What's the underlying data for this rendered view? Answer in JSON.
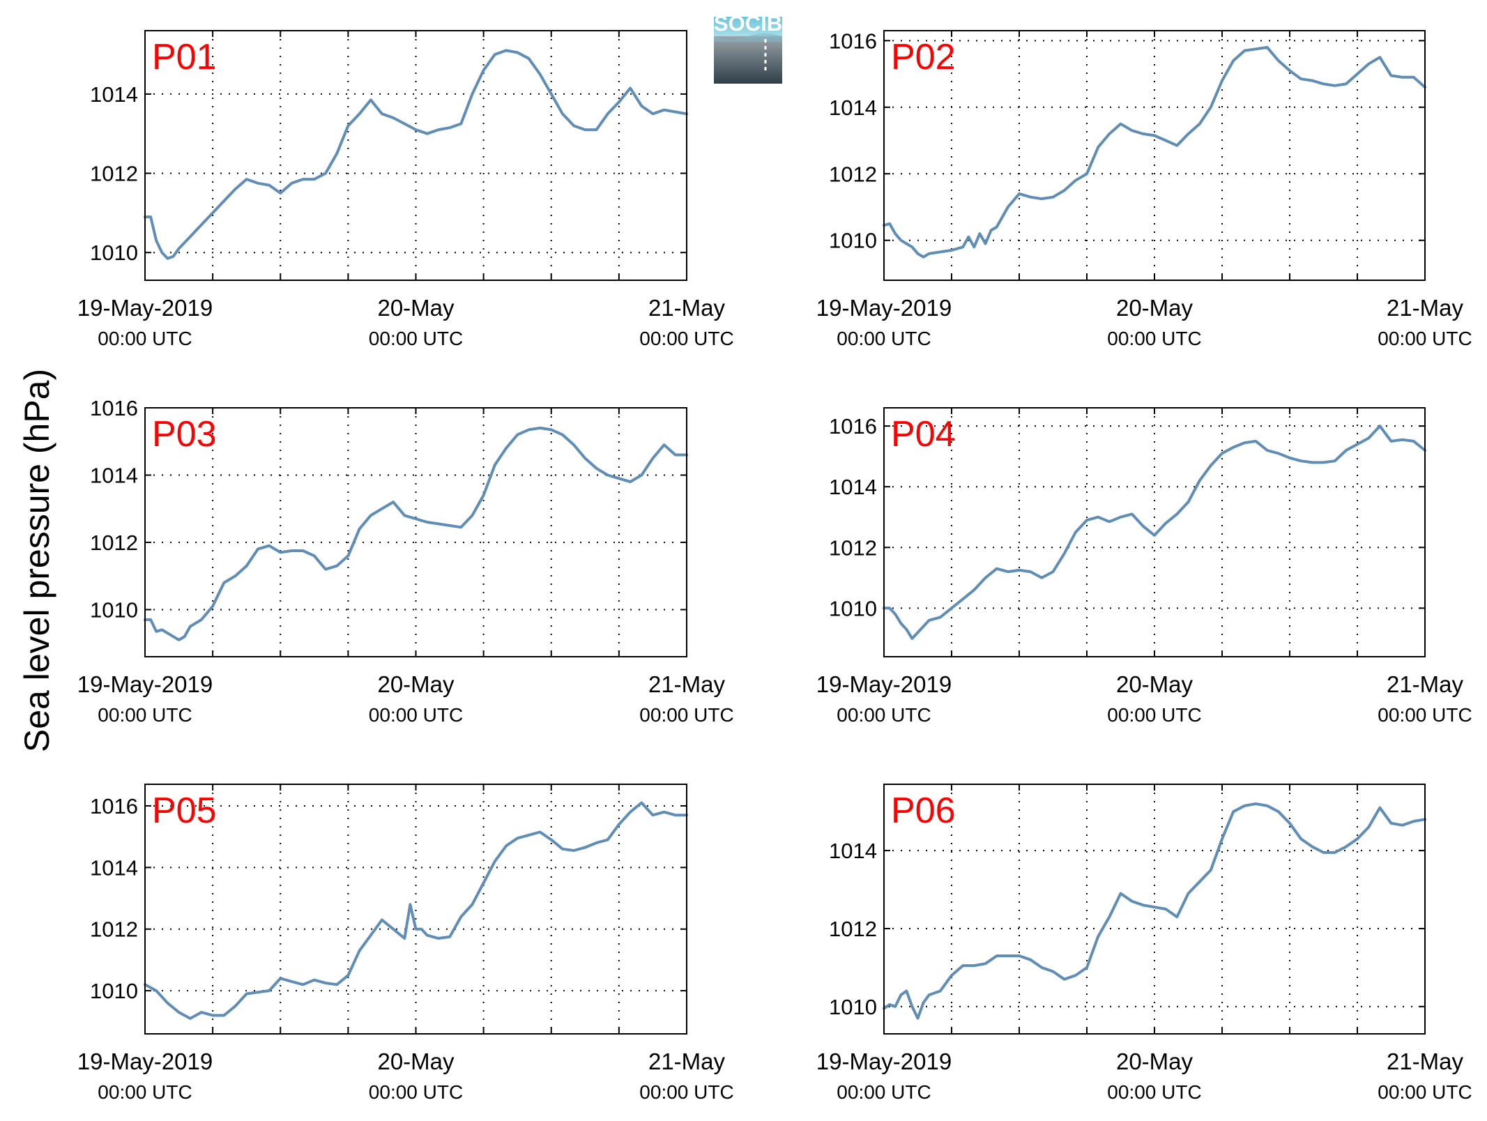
{
  "figure": {
    "ylabel": "Sea level pressure (hPa)",
    "logo_text": "SOCIB",
    "line_color": "#5f8db5",
    "label_color": "#ff0000"
  },
  "chart_data": [
    {
      "type": "line",
      "label": "P01",
      "xlim": [
        0,
        48
      ],
      "ylim": [
        1009.3,
        1015.6
      ],
      "yticks": [
        1010,
        1012,
        1014
      ],
      "xticks": [
        {
          "date": "19-May-2019",
          "time": "00:00 UTC"
        },
        {
          "date": "20-May",
          "time": "00:00 UTC"
        },
        {
          "date": "21-May",
          "time": "00:00 UTC"
        }
      ],
      "grid": true,
      "x": [
        0,
        0.5,
        1,
        1.5,
        2,
        2.5,
        3,
        4,
        5,
        6,
        7,
        8,
        9,
        10,
        11,
        12,
        13,
        14,
        15,
        16,
        17,
        18,
        19,
        20,
        21,
        22,
        23,
        24,
        25,
        26,
        27,
        28,
        29,
        30,
        31,
        32,
        33,
        34,
        35,
        36,
        37,
        38,
        39,
        40,
        41,
        42,
        43,
        44,
        45,
        46,
        47,
        48
      ],
      "y": [
        1010.9,
        1010.9,
        1010.3,
        1010.0,
        1009.85,
        1009.9,
        1010.1,
        1010.4,
        1010.7,
        1011.0,
        1011.3,
        1011.6,
        1011.85,
        1011.75,
        1011.7,
        1011.5,
        1011.75,
        1011.85,
        1011.85,
        1012.0,
        1012.5,
        1013.2,
        1013.5,
        1013.85,
        1013.5,
        1013.4,
        1013.25,
        1013.1,
        1013.0,
        1013.1,
        1013.15,
        1013.25,
        1014.0,
        1014.6,
        1015.0,
        1015.1,
        1015.05,
        1014.9,
        1014.5,
        1014.0,
        1013.5,
        1013.2,
        1013.1,
        1013.1,
        1013.5,
        1013.8,
        1014.15,
        1013.7,
        1013.5,
        1013.6,
        1013.55,
        1013.5
      ]
    },
    {
      "type": "line",
      "label": "P02",
      "xlim": [
        0,
        48
      ],
      "ylim": [
        1008.8,
        1016.3
      ],
      "yticks": [
        1010,
        1012,
        1014,
        1016
      ],
      "xticks": [
        {
          "date": "19-May-2019",
          "time": "00:00 UTC"
        },
        {
          "date": "20-May",
          "time": "00:00 UTC"
        },
        {
          "date": "21-May",
          "time": "00:00 UTC"
        }
      ],
      "grid": true,
      "x": [
        0,
        0.5,
        1,
        1.5,
        2,
        2.5,
        3,
        3.5,
        4,
        5,
        6,
        7,
        7.5,
        8,
        8.5,
        9,
        9.5,
        10,
        11,
        12,
        13,
        14,
        15,
        16,
        17,
        18,
        19,
        20,
        21,
        22,
        23,
        24,
        25,
        26,
        27,
        28,
        29,
        30,
        31,
        32,
        33,
        34,
        35,
        36,
        37,
        38,
        39,
        40,
        41,
        42,
        43,
        44,
        45,
        46,
        47,
        48
      ],
      "y": [
        1010.45,
        1010.5,
        1010.2,
        1010.0,
        1009.9,
        1009.8,
        1009.6,
        1009.5,
        1009.6,
        1009.65,
        1009.7,
        1009.8,
        1010.1,
        1009.8,
        1010.2,
        1009.9,
        1010.3,
        1010.4,
        1011.0,
        1011.4,
        1011.3,
        1011.25,
        1011.3,
        1011.5,
        1011.8,
        1012.0,
        1012.8,
        1013.2,
        1013.5,
        1013.3,
        1013.2,
        1013.15,
        1013.0,
        1012.85,
        1013.2,
        1013.5,
        1014.0,
        1014.8,
        1015.4,
        1015.7,
        1015.75,
        1015.8,
        1015.4,
        1015.1,
        1014.85,
        1014.8,
        1014.7,
        1014.65,
        1014.7,
        1015.0,
        1015.3,
        1015.5,
        1014.95,
        1014.9,
        1014.9,
        1014.6
      ]
    },
    {
      "type": "line",
      "label": "P03",
      "xlim": [
        0,
        48
      ],
      "ylim": [
        1008.6,
        1016.0
      ],
      "yticks": [
        1010,
        1012,
        1014,
        1016
      ],
      "xticks": [
        {
          "date": "19-May-2019",
          "time": "00:00 UTC"
        },
        {
          "date": "20-May",
          "time": "00:00 UTC"
        },
        {
          "date": "21-May",
          "time": "00:00 UTC"
        }
      ],
      "grid": true,
      "x": [
        0,
        0.5,
        1,
        1.5,
        2,
        2.5,
        3,
        3.5,
        4,
        5,
        6,
        7,
        8,
        9,
        10,
        11,
        12,
        13,
        14,
        15,
        16,
        17,
        18,
        19,
        20,
        21,
        22,
        23,
        24,
        25,
        26,
        27,
        28,
        29,
        30,
        31,
        32,
        33,
        34,
        35,
        36,
        37,
        38,
        39,
        40,
        41,
        42,
        43,
        44,
        45,
        46,
        47,
        48
      ],
      "y": [
        1009.7,
        1009.7,
        1009.35,
        1009.4,
        1009.3,
        1009.2,
        1009.1,
        1009.2,
        1009.5,
        1009.7,
        1010.1,
        1010.8,
        1011.0,
        1011.3,
        1011.8,
        1011.9,
        1011.7,
        1011.75,
        1011.75,
        1011.6,
        1011.2,
        1011.3,
        1011.6,
        1012.4,
        1012.8,
        1013.0,
        1013.2,
        1012.8,
        1012.7,
        1012.6,
        1012.55,
        1012.5,
        1012.45,
        1012.8,
        1013.4,
        1014.3,
        1014.8,
        1015.2,
        1015.35,
        1015.4,
        1015.35,
        1015.2,
        1014.9,
        1014.5,
        1014.2,
        1014.0,
        1013.9,
        1013.8,
        1014.0,
        1014.5,
        1014.9,
        1014.6,
        1014.6
      ]
    },
    {
      "type": "line",
      "label": "P04",
      "xlim": [
        0,
        48
      ],
      "ylim": [
        1008.4,
        1016.6
      ],
      "yticks": [
        1010,
        1012,
        1014,
        1016
      ],
      "xticks": [
        {
          "date": "19-May-2019",
          "time": "00:00 UTC"
        },
        {
          "date": "20-May",
          "time": "00:00 UTC"
        },
        {
          "date": "21-May",
          "time": "00:00 UTC"
        }
      ],
      "grid": true,
      "x": [
        0,
        0.5,
        1,
        1.5,
        2,
        2.5,
        3,
        4,
        5,
        6,
        7,
        8,
        9,
        10,
        11,
        12,
        13,
        14,
        15,
        16,
        17,
        18,
        19,
        20,
        21,
        22,
        23,
        24,
        25,
        26,
        27,
        28,
        29,
        30,
        31,
        32,
        33,
        34,
        35,
        36,
        37,
        38,
        39,
        40,
        41,
        42,
        43,
        44,
        45,
        46,
        47,
        48
      ],
      "y": [
        1010.0,
        1010.0,
        1009.8,
        1009.5,
        1009.3,
        1009.0,
        1009.2,
        1009.6,
        1009.7,
        1010.0,
        1010.3,
        1010.6,
        1011.0,
        1011.3,
        1011.2,
        1011.25,
        1011.2,
        1011.0,
        1011.2,
        1011.8,
        1012.5,
        1012.9,
        1013.0,
        1012.85,
        1013.0,
        1013.1,
        1012.7,
        1012.4,
        1012.8,
        1013.1,
        1013.5,
        1014.2,
        1014.7,
        1015.1,
        1015.3,
        1015.45,
        1015.5,
        1015.2,
        1015.1,
        1014.95,
        1014.85,
        1014.8,
        1014.8,
        1014.85,
        1015.2,
        1015.4,
        1015.6,
        1016.0,
        1015.5,
        1015.55,
        1015.5,
        1015.2
      ]
    },
    {
      "type": "line",
      "label": "P05",
      "xlim": [
        0,
        48
      ],
      "ylim": [
        1008.6,
        1016.7
      ],
      "yticks": [
        1010,
        1012,
        1014,
        1016
      ],
      "xticks": [
        {
          "date": "19-May-2019",
          "time": "00:00 UTC"
        },
        {
          "date": "20-May",
          "time": "00:00 UTC"
        },
        {
          "date": "21-May",
          "time": "00:00 UTC"
        }
      ],
      "grid": true,
      "x": [
        0,
        1,
        2,
        3,
        4,
        5,
        6,
        7,
        8,
        9,
        10,
        11,
        12,
        13,
        14,
        15,
        16,
        17,
        18,
        19,
        20,
        21,
        22,
        23,
        23.5,
        24,
        24.5,
        25,
        26,
        27,
        28,
        29,
        30,
        31,
        32,
        33,
        34,
        35,
        36,
        37,
        38,
        39,
        40,
        41,
        42,
        43,
        44,
        45,
        46,
        47,
        48
      ],
      "y": [
        1010.2,
        1010.0,
        1009.6,
        1009.3,
        1009.1,
        1009.3,
        1009.2,
        1009.2,
        1009.5,
        1009.9,
        1009.95,
        1010.0,
        1010.4,
        1010.3,
        1010.2,
        1010.35,
        1010.25,
        1010.2,
        1010.5,
        1011.3,
        1011.8,
        1012.3,
        1012.0,
        1011.7,
        1012.8,
        1012.0,
        1012.0,
        1011.8,
        1011.7,
        1011.75,
        1012.4,
        1012.8,
        1013.5,
        1014.2,
        1014.7,
        1014.95,
        1015.05,
        1015.15,
        1014.9,
        1014.6,
        1014.55,
        1014.65,
        1014.8,
        1014.9,
        1015.4,
        1015.8,
        1016.1,
        1015.7,
        1015.8,
        1015.7,
        1015.7
      ]
    },
    {
      "type": "line",
      "label": "P06",
      "xlim": [
        0,
        48
      ],
      "ylim": [
        1009.3,
        1015.7
      ],
      "yticks": [
        1010,
        1012,
        1014
      ],
      "xticks": [
        {
          "date": "19-May-2019",
          "time": "00:00 UTC"
        },
        {
          "date": "20-May",
          "time": "00:00 UTC"
        },
        {
          "date": "21-May",
          "time": "00:00 UTC"
        }
      ],
      "grid": true,
      "x": [
        0,
        0.5,
        1,
        1.5,
        2,
        2.5,
        3,
        3.5,
        4,
        5,
        6,
        7,
        8,
        9,
        10,
        11,
        12,
        13,
        14,
        15,
        16,
        17,
        18,
        19,
        20,
        21,
        22,
        23,
        24,
        25,
        26,
        27,
        28,
        29,
        30,
        31,
        32,
        33,
        34,
        35,
        36,
        37,
        38,
        39,
        40,
        41,
        42,
        43,
        44,
        45,
        46,
        47,
        48
      ],
      "y": [
        1009.95,
        1010.05,
        1010.0,
        1010.3,
        1010.4,
        1010.0,
        1009.7,
        1010.1,
        1010.3,
        1010.4,
        1010.8,
        1011.05,
        1011.05,
        1011.1,
        1011.3,
        1011.3,
        1011.3,
        1011.2,
        1011.0,
        1010.9,
        1010.7,
        1010.8,
        1011.0,
        1011.8,
        1012.3,
        1012.9,
        1012.7,
        1012.6,
        1012.55,
        1012.5,
        1012.3,
        1012.9,
        1013.2,
        1013.5,
        1014.3,
        1015.0,
        1015.15,
        1015.2,
        1015.15,
        1015.0,
        1014.7,
        1014.3,
        1014.1,
        1013.95,
        1013.95,
        1014.1,
        1014.3,
        1014.6,
        1015.1,
        1014.7,
        1014.65,
        1014.75,
        1014.8
      ]
    }
  ]
}
